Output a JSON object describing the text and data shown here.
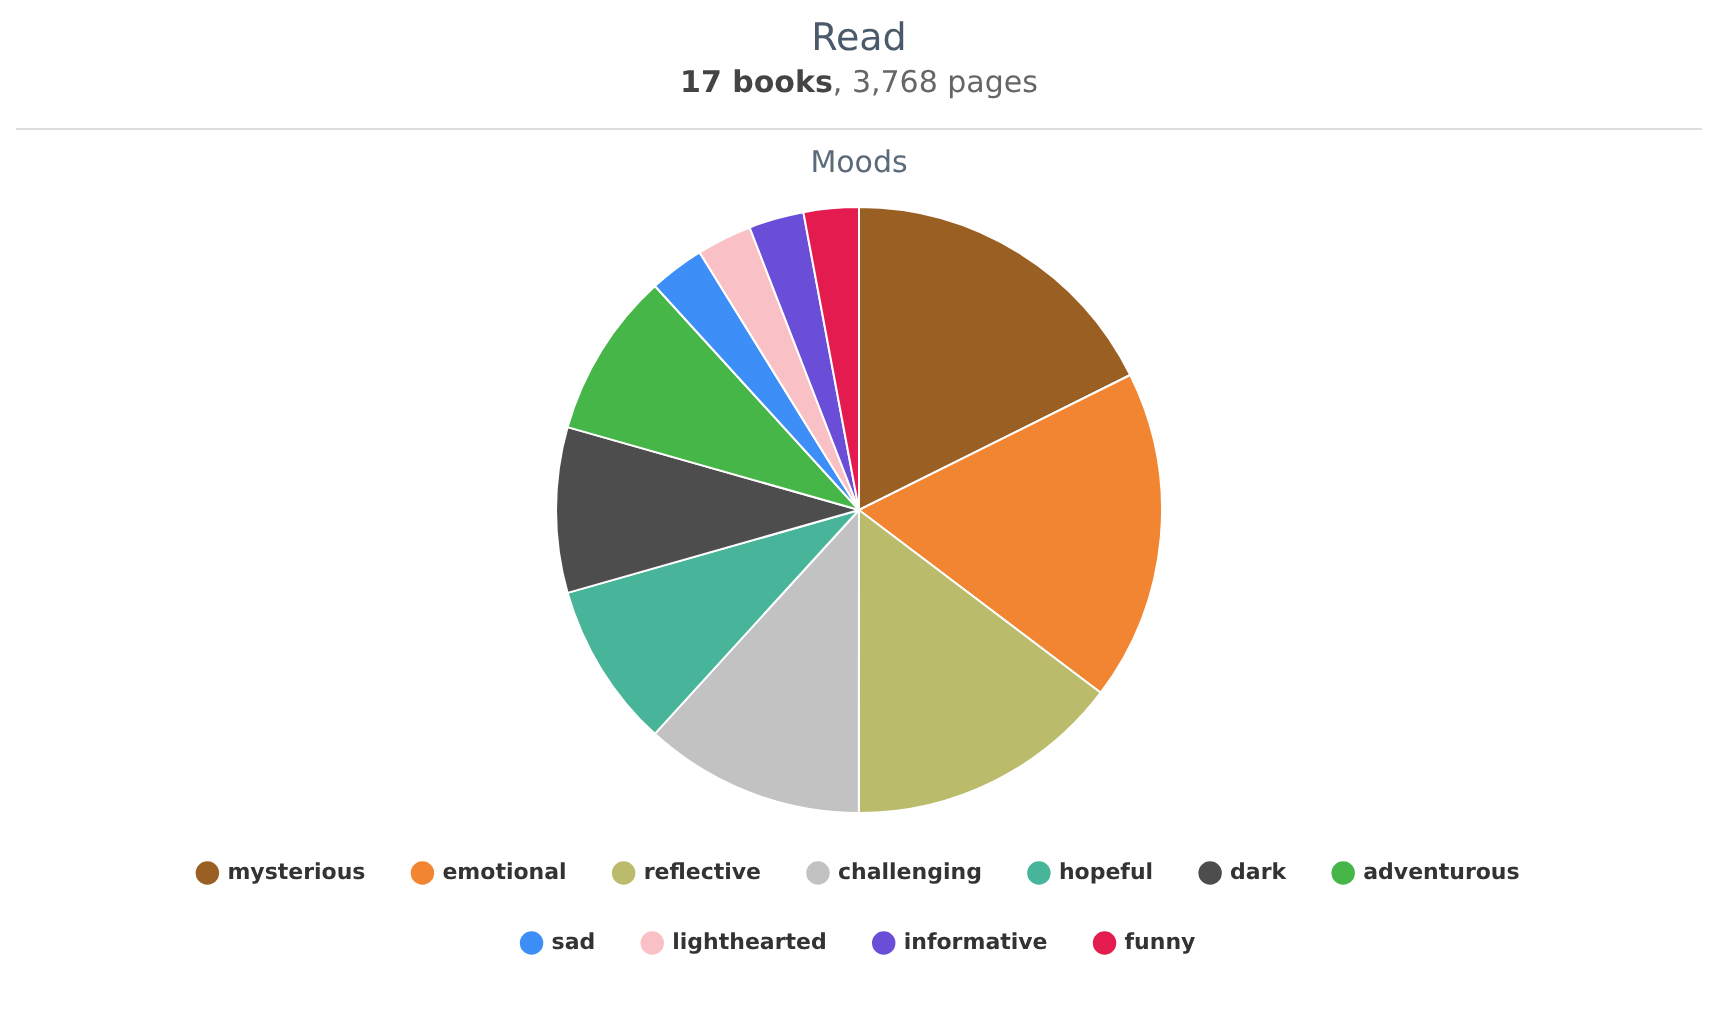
{
  "chart_data": {
    "type": "pie",
    "title": "Read",
    "subtitle": "17 books, 3,768 pages",
    "annotations": [
      "Moods"
    ],
    "categories": [
      "mysterious",
      "emotional",
      "reflective",
      "challenging",
      "hopeful",
      "dark",
      "adventurous",
      "sad",
      "lighthearted",
      "informative",
      "funny"
    ],
    "values": [
      17.65,
      17.65,
      14.71,
      11.76,
      8.82,
      8.82,
      8.83,
      2.94,
      2.94,
      2.94,
      2.94
    ],
    "colors": [
      "#9a5f22",
      "#f28532",
      "#bbbb6c",
      "#c2c2c2",
      "#48b59b",
      "#4d4d4d",
      "#46b648",
      "#3e8ef7",
      "#f9c1c5",
      "#6b4ed8",
      "#e31b4f"
    ],
    "legend": "bottom"
  }
}
